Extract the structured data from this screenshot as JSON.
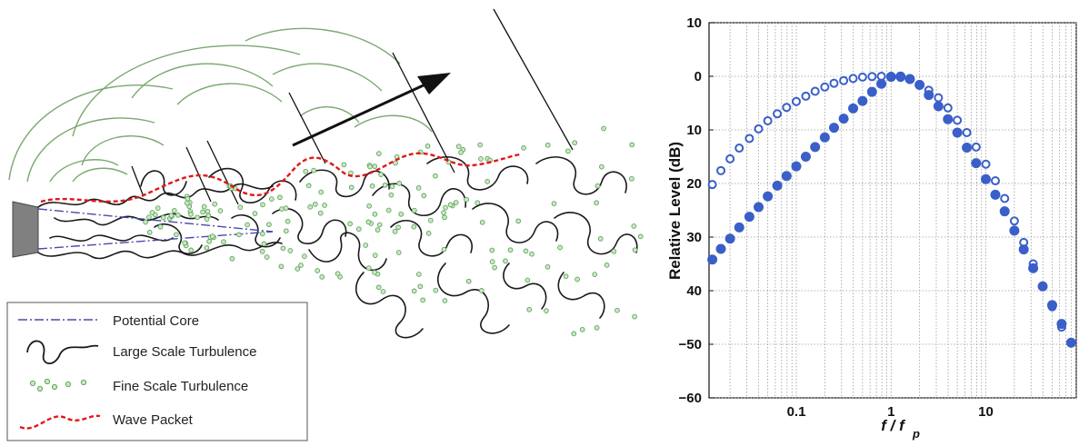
{
  "legend": {
    "items": [
      {
        "label": "Potential Core",
        "style": "dash-dot",
        "color": "#4a4aa8"
      },
      {
        "label": "Large Scale Turbulence",
        "style": "wavy",
        "color": "#222222"
      },
      {
        "label": "Fine Scale Turbulence",
        "style": "dots",
        "color": "#5aa85a"
      },
      {
        "label": "Wave Packet",
        "style": "dashed",
        "color": "#e01818"
      }
    ]
  },
  "colors": {
    "arc": "#7aa870",
    "turbulence": "#1a1a1a",
    "fine_scale": "#5aa85a",
    "wave_packet": "#e01818",
    "potential_core": "#4a4aa8",
    "nozzle": "#808080",
    "marker": "#3a5fc8"
  },
  "chart_data": {
    "type": "scatter",
    "xscale": "log",
    "xlim": [
      0.012,
      90
    ],
    "ylim": [
      -60,
      10
    ],
    "xticks": [
      {
        "value": 0.1,
        "label": "0.1"
      },
      {
        "value": 1,
        "label": "1"
      },
      {
        "value": 10,
        "label": "10"
      }
    ],
    "yticks": [
      {
        "value": 10,
        "label": "10"
      },
      {
        "value": 0,
        "label": "0"
      },
      {
        "value": -10,
        "label": "10"
      },
      {
        "value": -20,
        "label": "20"
      },
      {
        "value": -30,
        "label": "30"
      },
      {
        "value": -40,
        "label": "40"
      },
      {
        "value": -50,
        "label": "−50"
      },
      {
        "value": -60,
        "label": "−60"
      }
    ],
    "ylabel": "Relative Level (dB)",
    "xlabel_main": "f / f",
    "xlabel_sub": "p",
    "grid": true,
    "series": [
      {
        "marker": "open-circle",
        "points": [
          [
            0.013,
            -20.2
          ],
          [
            0.016,
            -17.6
          ],
          [
            0.02,
            -15.4
          ],
          [
            0.025,
            -13.4
          ],
          [
            0.032,
            -11.6
          ],
          [
            0.04,
            -9.8
          ],
          [
            0.05,
            -8.3
          ],
          [
            0.063,
            -7.0
          ],
          [
            0.079,
            -5.8
          ],
          [
            0.1,
            -4.7
          ],
          [
            0.126,
            -3.7
          ],
          [
            0.158,
            -2.8
          ],
          [
            0.2,
            -2.0
          ],
          [
            0.25,
            -1.3
          ],
          [
            0.316,
            -0.8
          ],
          [
            0.398,
            -0.4
          ],
          [
            0.5,
            -0.15
          ],
          [
            0.63,
            -0.05
          ],
          [
            0.79,
            0.0
          ],
          [
            1.0,
            0.0
          ],
          [
            1.26,
            -0.2
          ],
          [
            1.58,
            -0.6
          ],
          [
            2.0,
            -1.5
          ],
          [
            2.5,
            -2.6
          ],
          [
            3.16,
            -4.0
          ],
          [
            3.98,
            -5.9
          ],
          [
            5.0,
            -8.2
          ],
          [
            6.3,
            -10.5
          ],
          [
            7.9,
            -13.2
          ],
          [
            10.0,
            -16.4
          ],
          [
            12.6,
            -19.5
          ],
          [
            15.8,
            -22.8
          ],
          [
            20.0,
            -27.0
          ],
          [
            25.1,
            -31.0
          ],
          [
            31.6,
            -35.0
          ],
          [
            39.8,
            -39.2
          ],
          [
            50.1,
            -43.0
          ],
          [
            63.1,
            -46.8
          ]
        ]
      },
      {
        "marker": "filled-circle",
        "points": [
          [
            0.013,
            -34.2
          ],
          [
            0.016,
            -32.2
          ],
          [
            0.02,
            -30.3
          ],
          [
            0.025,
            -28.2
          ],
          [
            0.032,
            -26.2
          ],
          [
            0.04,
            -24.4
          ],
          [
            0.05,
            -22.4
          ],
          [
            0.063,
            -20.4
          ],
          [
            0.079,
            -18.6
          ],
          [
            0.1,
            -16.8
          ],
          [
            0.126,
            -15.0
          ],
          [
            0.158,
            -13.2
          ],
          [
            0.2,
            -11.4
          ],
          [
            0.25,
            -9.6
          ],
          [
            0.316,
            -7.9
          ],
          [
            0.398,
            -6.0
          ],
          [
            0.5,
            -4.6
          ],
          [
            0.63,
            -2.9
          ],
          [
            0.79,
            -1.4
          ],
          [
            1.0,
            -0.1
          ],
          [
            1.26,
            -0.05
          ],
          [
            1.58,
            -0.5
          ],
          [
            2.0,
            -1.6
          ],
          [
            2.5,
            -3.5
          ],
          [
            3.16,
            -5.6
          ],
          [
            3.98,
            -8.0
          ],
          [
            5.0,
            -10.5
          ],
          [
            6.3,
            -13.3
          ],
          [
            7.9,
            -16.2
          ],
          [
            10.0,
            -19.2
          ],
          [
            12.6,
            -22.1
          ],
          [
            15.8,
            -25.2
          ],
          [
            20.0,
            -28.8
          ],
          [
            25.1,
            -32.3
          ],
          [
            31.6,
            -35.8
          ],
          [
            39.8,
            -39.2
          ],
          [
            50.1,
            -42.7
          ],
          [
            63.1,
            -46.2
          ],
          [
            79.4,
            -49.7
          ]
        ]
      }
    ]
  }
}
